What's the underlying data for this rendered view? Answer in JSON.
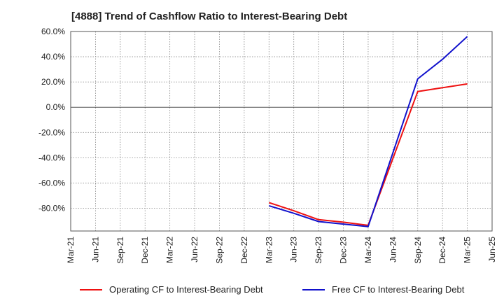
{
  "chart_data": {
    "type": "line",
    "title": "[4888]  Trend of Cashflow Ratio to Interest-Bearing Debt",
    "xlabel": "",
    "ylabel": "",
    "ylim": [
      -98,
      60
    ],
    "yticks": [
      60,
      40,
      20,
      0,
      -20,
      -40,
      -60,
      -80
    ],
    "ytick_labels": [
      "60.0%",
      "40.0%",
      "20.0%",
      "0.0%",
      "-20.0%",
      "-40.0%",
      "-60.0%",
      "-80.0%"
    ],
    "categories": [
      "Mar-21",
      "Jun-21",
      "Sep-21",
      "Dec-21",
      "Mar-22",
      "Jun-22",
      "Sep-22",
      "Dec-22",
      "Mar-23",
      "Jun-23",
      "Sep-23",
      "Dec-23",
      "Mar-24",
      "Jun-24",
      "Sep-24",
      "Dec-24",
      "Mar-25",
      "Jun-25"
    ],
    "grid": true,
    "series": [
      {
        "name": "Operating CF to Interest-Bearing Debt",
        "color": "#ee1111",
        "values": [
          null,
          null,
          null,
          null,
          null,
          null,
          null,
          null,
          -75.5,
          -82.0,
          -89.0,
          -91.0,
          -93.5,
          null,
          12.5,
          15.5,
          18.5,
          null
        ]
      },
      {
        "name": "Free CF to Interest-Bearing Debt",
        "color": "#1111cc",
        "values": [
          null,
          null,
          null,
          null,
          null,
          null,
          null,
          null,
          -78.0,
          -84.0,
          -90.5,
          -92.5,
          -94.5,
          null,
          22.5,
          38.0,
          56.0,
          null
        ]
      }
    ]
  }
}
